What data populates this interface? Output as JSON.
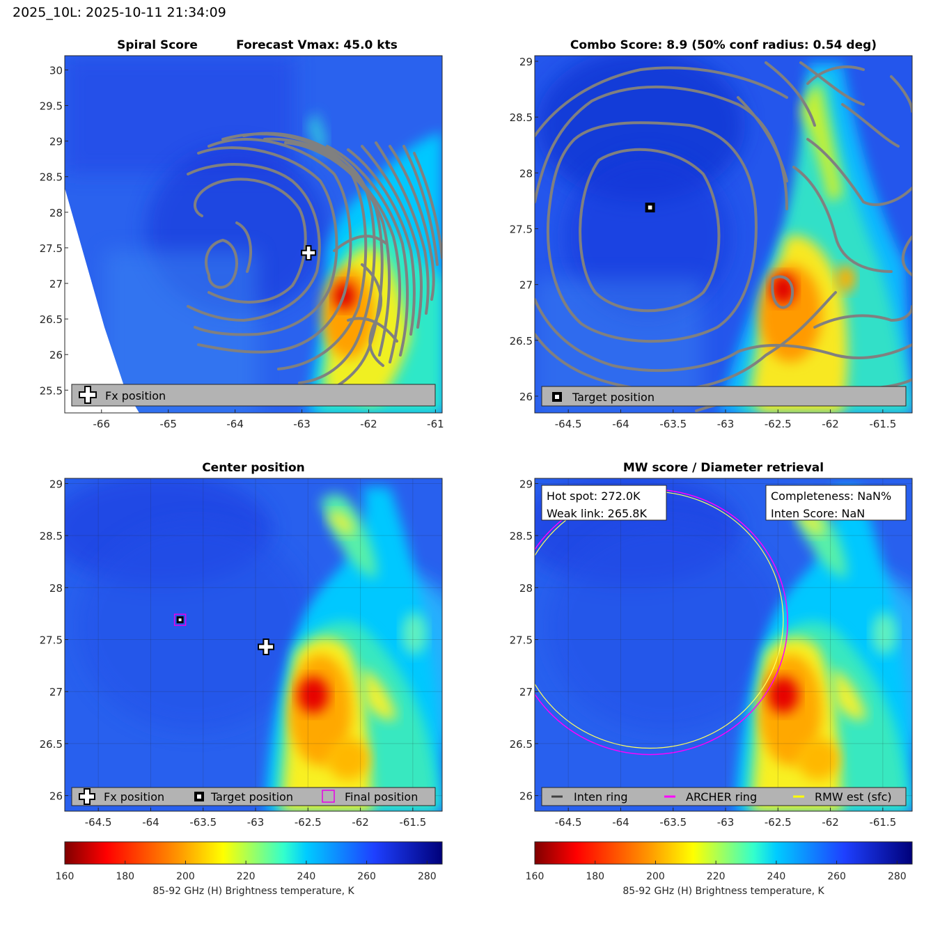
{
  "figure_title": "2025_10L: 2025-10-11 21:34:09",
  "panels": [
    {
      "title_left": "Spiral Score",
      "title_right": "Forecast Vmax: 45.0 kts",
      "legend": [
        {
          "symbol": "fx-cross",
          "label": "Fx position"
        }
      ]
    },
    {
      "title": "Combo Score: 8.9  (50% conf radius: 0.54 deg)",
      "legend": [
        {
          "symbol": "target-square",
          "label": "Target position"
        }
      ]
    },
    {
      "title": "Center position",
      "legend": [
        {
          "symbol": "fx-cross",
          "label": "Fx position"
        },
        {
          "symbol": "target-square",
          "label": "Target position"
        },
        {
          "symbol": "final-square",
          "label": "Final position"
        }
      ]
    },
    {
      "title": "MW score / Diameter retrieval",
      "info_left": [
        "Hot spot: 272.0K",
        "Weak link: 265.8K"
      ],
      "info_right": [
        "Completeness: NaN%",
        "Inten Score: NaN"
      ],
      "legend": [
        {
          "symbol": "line",
          "color": "#404040",
          "label": "Inten ring"
        },
        {
          "symbol": "line",
          "color": "#ff00ff",
          "label": "ARCHER ring"
        },
        {
          "symbol": "line",
          "color": "#ffff00",
          "label": "RMW est (sfc)"
        }
      ]
    }
  ],
  "colorbar": {
    "label": "85-92 GHz (H) Brightness temperature, K",
    "ticks": [
      "160",
      "180",
      "200",
      "220",
      "240",
      "260",
      "280"
    ],
    "range": [
      160,
      285
    ],
    "colormap": "jet-reversed"
  },
  "chart_data": [
    {
      "type": "heatmap",
      "title": "Spiral Score",
      "xlim": [
        -66.55,
        -60.9
      ],
      "ylim": [
        25.18,
        30.2
      ],
      "xticks": [
        "-66",
        "-65",
        "-64",
        "-63",
        "-62",
        "-61"
      ],
      "yticks": [
        "25.5",
        "26",
        "26.5",
        "27",
        "27.5",
        "28",
        "28.5",
        "29",
        "29.5",
        "30"
      ],
      "grid": false,
      "fx_position": {
        "lon": -62.9,
        "lat": 27.43
      },
      "cold_region": {
        "lon": -62.3,
        "lat": 26.85,
        "min_tb": 165
      },
      "swath_edge_west": [
        [
          -66.55,
          28.4
        ],
        [
          -65.3,
          25.18
        ]
      ],
      "spiral_contours": "gray spiral overlay centered near -63.5, 27.4"
    },
    {
      "type": "heatmap",
      "title": "Combo Score",
      "xlim": [
        -64.82,
        -61.22
      ],
      "ylim": [
        25.85,
        29.05
      ],
      "xticks": [
        "-64.5",
        "-64",
        "-63.5",
        "-63",
        "-62.5",
        "-62",
        "-61.5"
      ],
      "yticks": [
        "26",
        "26.5",
        "27",
        "27.5",
        "28",
        "28.5",
        "29"
      ],
      "grid": false,
      "target_position": {
        "lon": -63.72,
        "lat": 27.69
      },
      "combo_score": 8.9,
      "conf_radius_deg": 0.54
    },
    {
      "type": "heatmap",
      "title": "Center position",
      "xlim": [
        -64.82,
        -61.22
      ],
      "ylim": [
        25.85,
        29.05
      ],
      "xticks": [
        "-64.5",
        "-64",
        "-63.5",
        "-63",
        "-62.5",
        "-62",
        "-61.5"
      ],
      "yticks": [
        "26",
        "26.5",
        "27",
        "27.5",
        "28",
        "28.5",
        "29"
      ],
      "grid": true,
      "fx_position": {
        "lon": -62.9,
        "lat": 27.43
      },
      "target_position": {
        "lon": -63.72,
        "lat": 27.69
      },
      "final_position": {
        "lon": -63.72,
        "lat": 27.69
      },
      "cold_region": {
        "lon": -62.35,
        "lat": 26.95,
        "min_tb": 168
      }
    },
    {
      "type": "heatmap",
      "title": "MW score / Diameter retrieval",
      "xlim": [
        -64.82,
        -61.22
      ],
      "ylim": [
        25.85,
        29.05
      ],
      "xticks": [
        "-64.5",
        "-64",
        "-63.5",
        "-63",
        "-62.5",
        "-62",
        "-61.5"
      ],
      "yticks": [
        "26",
        "26.5",
        "27",
        "27.5",
        "28",
        "28.5",
        "29"
      ],
      "grid": true,
      "archer_ring": {
        "center_lon": -63.72,
        "center_lat": 27.69,
        "radius_deg": 1.25
      },
      "rmw_ring": {
        "center_lon": -63.72,
        "center_lat": 27.69,
        "radius_deg": 1.21
      },
      "hot_spot_K": 272.0,
      "weak_link_K": 265.8
    }
  ]
}
